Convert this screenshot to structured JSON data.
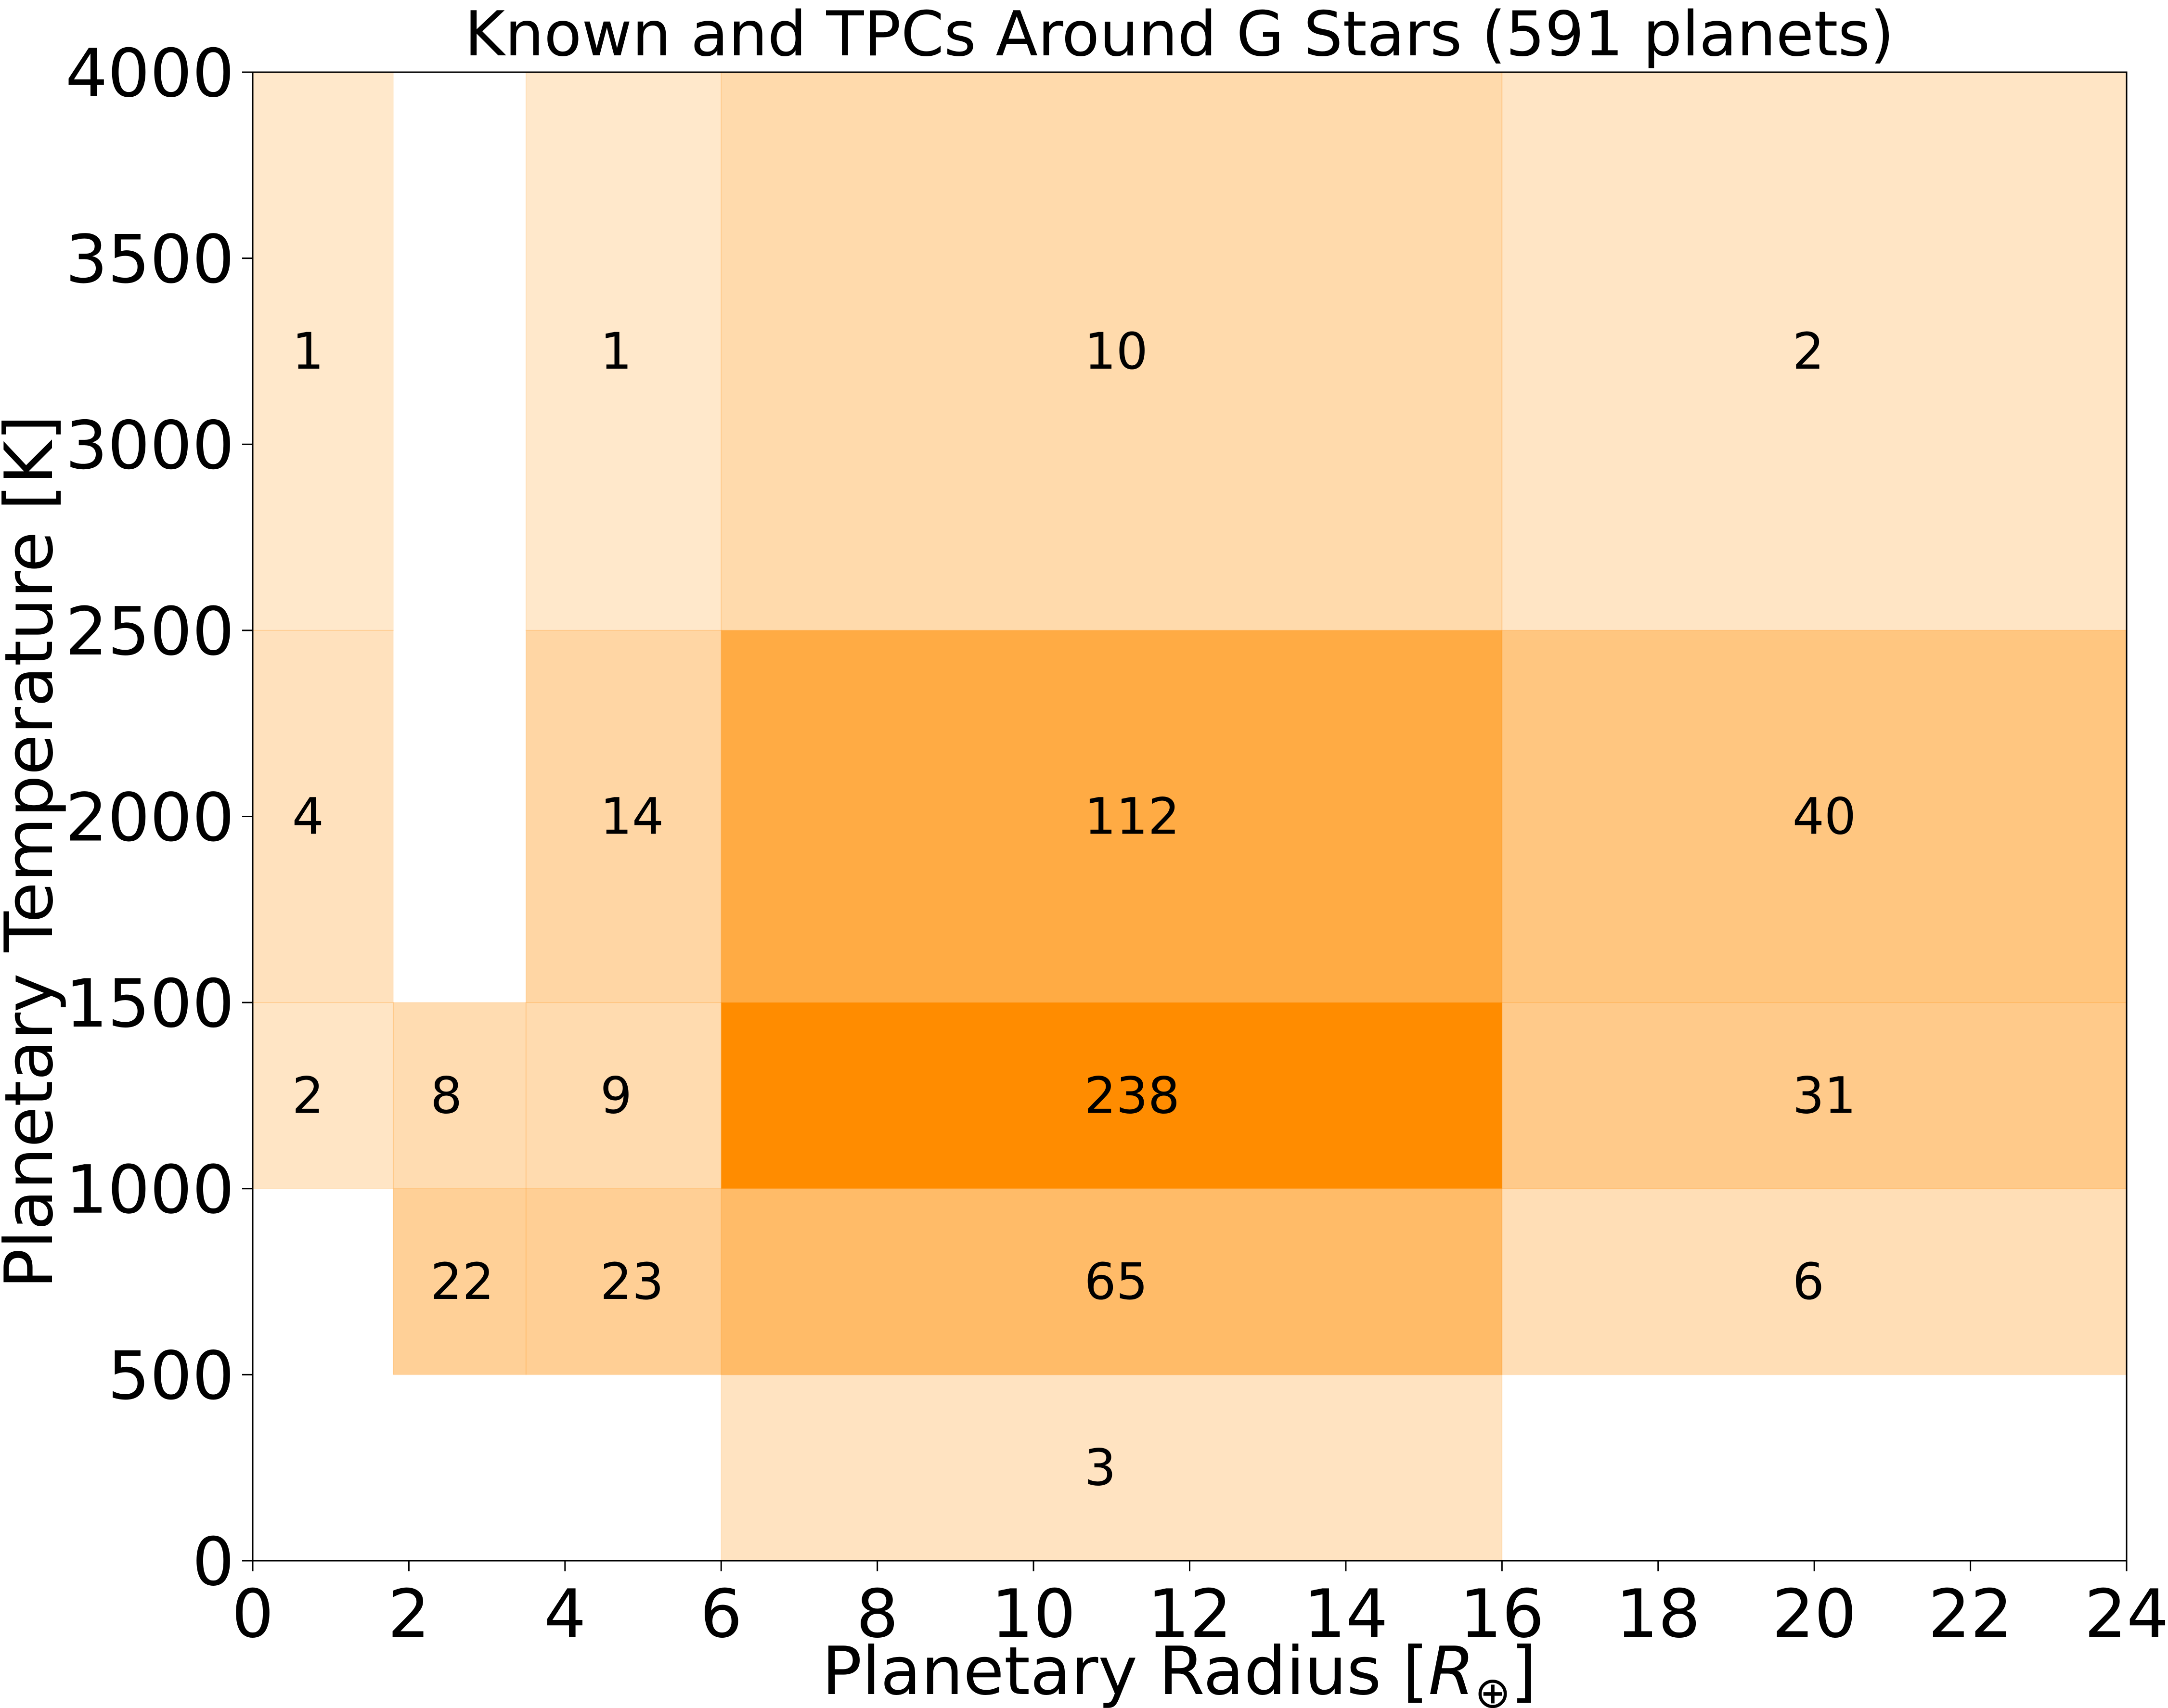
{
  "chart_data": {
    "type": "heatmap",
    "title": "Known and TPCs Around G Stars (591 planets)",
    "xlabel": "Planetary Radius [R⊕]",
    "xlabel_main": "Planetary Radius [",
    "xlabel_symbol": "R",
    "xlabel_subscript": "⊕",
    "xlabel_close": "]",
    "ylabel": "Planetary Temperature [K]",
    "xlim": [
      0,
      24
    ],
    "ylim": [
      0,
      4000
    ],
    "xticks": [
      "0",
      "2",
      "4",
      "6",
      "8",
      "10",
      "12",
      "14",
      "16",
      "18",
      "20",
      "22",
      "24"
    ],
    "yticks": [
      "0",
      "500",
      "1000",
      "1500",
      "2000",
      "2500",
      "3000",
      "3500",
      "4000"
    ],
    "x_bin_edges": [
      0,
      1.8,
      3.5,
      6,
      16,
      24
    ],
    "y_bin_edges": [
      0,
      500,
      1000,
      1500,
      2500,
      4000
    ],
    "color": "#ff8c00",
    "cells": [
      {
        "x0": 0,
        "x1": 1.8,
        "y0": 2500,
        "y1": 4000,
        "count": 1,
        "label": "1"
      },
      {
        "x0": 3.5,
        "x1": 6,
        "y0": 2500,
        "y1": 4000,
        "count": 1,
        "label": "1"
      },
      {
        "x0": 6,
        "x1": 16,
        "y0": 2500,
        "y1": 4000,
        "count": 10,
        "label": "10"
      },
      {
        "x0": 16,
        "x1": 24,
        "y0": 2500,
        "y1": 4000,
        "count": 2,
        "label": "2"
      },
      {
        "x0": 0,
        "x1": 1.8,
        "y0": 1500,
        "y1": 2500,
        "count": 4,
        "label": "4"
      },
      {
        "x0": 3.5,
        "x1": 6,
        "y0": 1500,
        "y1": 2500,
        "count": 14,
        "label": "14"
      },
      {
        "x0": 6,
        "x1": 16,
        "y0": 1500,
        "y1": 2500,
        "count": 112,
        "label": "112"
      },
      {
        "x0": 16,
        "x1": 24,
        "y0": 1500,
        "y1": 2500,
        "count": 40,
        "label": "40"
      },
      {
        "x0": 0,
        "x1": 1.8,
        "y0": 1000,
        "y1": 1500,
        "count": 2,
        "label": "2"
      },
      {
        "x0": 1.8,
        "x1": 3.5,
        "y0": 1000,
        "y1": 1500,
        "count": 8,
        "label": "8"
      },
      {
        "x0": 3.5,
        "x1": 6,
        "y0": 1000,
        "y1": 1500,
        "count": 9,
        "label": "9"
      },
      {
        "x0": 6,
        "x1": 16,
        "y0": 1000,
        "y1": 1500,
        "count": 238,
        "label": "238"
      },
      {
        "x0": 16,
        "x1": 24,
        "y0": 1000,
        "y1": 1500,
        "count": 31,
        "label": "31"
      },
      {
        "x0": 1.8,
        "x1": 3.5,
        "y0": 500,
        "y1": 1000,
        "count": 22,
        "label": "22"
      },
      {
        "x0": 3.5,
        "x1": 6,
        "y0": 500,
        "y1": 1000,
        "count": 23,
        "label": "23"
      },
      {
        "x0": 6,
        "x1": 16,
        "y0": 500,
        "y1": 1000,
        "count": 65,
        "label": "65"
      },
      {
        "x0": 16,
        "x1": 24,
        "y0": 500,
        "y1": 1000,
        "count": 6,
        "label": "6"
      },
      {
        "x0": 6,
        "x1": 16,
        "y0": 0,
        "y1": 500,
        "count": 3,
        "label": "3"
      }
    ],
    "grid": false,
    "legend": "none"
  }
}
